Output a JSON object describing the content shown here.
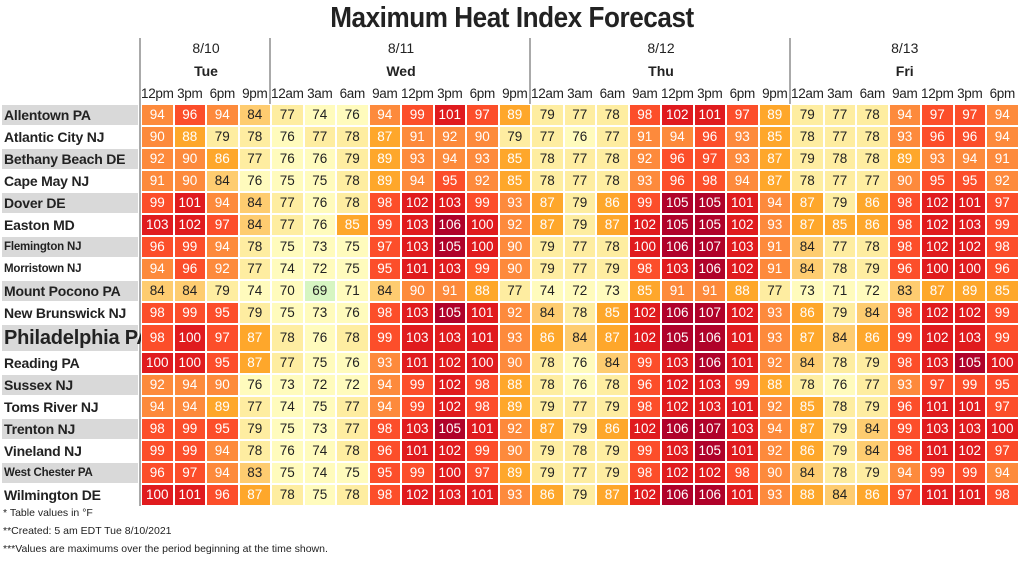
{
  "chart_data": {
    "type": "heatmap",
    "title": "Maximum Heat Index Forecast",
    "days": [
      {
        "date": "8/10",
        "day": "Tue",
        "times": [
          "12pm",
          "3pm",
          "6pm",
          "9pm"
        ]
      },
      {
        "date": "8/11",
        "day": "Wed",
        "times": [
          "12am",
          "3am",
          "6am",
          "9am",
          "12pm",
          "3pm",
          "6pm",
          "9pm"
        ]
      },
      {
        "date": "8/12",
        "day": "Thu",
        "times": [
          "12am",
          "3am",
          "6am",
          "9am",
          "12pm",
          "3pm",
          "6pm",
          "9pm"
        ]
      },
      {
        "date": "8/13",
        "day": "Fri",
        "times": [
          "12am",
          "3am",
          "6am",
          "9am",
          "12pm",
          "3pm",
          "6pm"
        ]
      }
    ],
    "units": "°F",
    "rows": [
      {
        "name": "Allentown PA",
        "values": [
          94,
          96,
          94,
          84,
          77,
          74,
          76,
          94,
          99,
          101,
          97,
          89,
          79,
          77,
          78,
          98,
          102,
          101,
          97,
          89,
          79,
          77,
          78,
          94,
          97,
          97,
          94
        ]
      },
      {
        "name": "Atlantic City NJ",
        "values": [
          90,
          88,
          79,
          78,
          76,
          77,
          78,
          87,
          91,
          92,
          90,
          79,
          77,
          76,
          77,
          91,
          94,
          96,
          93,
          85,
          78,
          77,
          78,
          93,
          96,
          96,
          94
        ]
      },
      {
        "name": "Bethany Beach DE",
        "values": [
          92,
          90,
          86,
          77,
          76,
          76,
          79,
          89,
          93,
          94,
          93,
          85,
          78,
          77,
          78,
          92,
          96,
          97,
          93,
          87,
          79,
          78,
          78,
          89,
          93,
          94,
          91
        ]
      },
      {
        "name": "Cape May NJ",
        "values": [
          91,
          90,
          84,
          76,
          75,
          75,
          78,
          89,
          94,
          95,
          92,
          85,
          78,
          77,
          78,
          93,
          96,
          98,
          94,
          87,
          78,
          77,
          77,
          90,
          95,
          95,
          92
        ]
      },
      {
        "name": "Dover DE",
        "values": [
          99,
          101,
          94,
          84,
          77,
          76,
          78,
          98,
          102,
          103,
          99,
          93,
          87,
          79,
          86,
          99,
          105,
          105,
          101,
          94,
          87,
          79,
          86,
          98,
          102,
          101,
          97
        ]
      },
      {
        "name": "Easton MD",
        "values": [
          103,
          102,
          97,
          84,
          77,
          76,
          85,
          99,
          103,
          106,
          100,
          92,
          87,
          79,
          87,
          102,
          105,
          105,
          102,
          93,
          87,
          85,
          86,
          98,
          102,
          103,
          99
        ]
      },
      {
        "name": "Flemington NJ",
        "values": [
          96,
          99,
          94,
          78,
          75,
          73,
          75,
          97,
          103,
          105,
          100,
          90,
          79,
          77,
          78,
          100,
          106,
          107,
          103,
          91,
          84,
          77,
          78,
          98,
          102,
          102,
          98
        ]
      },
      {
        "name": "Morristown NJ",
        "values": [
          94,
          96,
          92,
          77,
          74,
          72,
          75,
          95,
          101,
          103,
          99,
          90,
          79,
          77,
          79,
          98,
          103,
          106,
          102,
          91,
          84,
          78,
          79,
          96,
          100,
          100,
          96
        ]
      },
      {
        "name": "Mount Pocono PA",
        "values": [
          84,
          84,
          79,
          74,
          70,
          69,
          71,
          84,
          90,
          91,
          88,
          77,
          74,
          72,
          73,
          85,
          91,
          91,
          88,
          77,
          73,
          71,
          72,
          83,
          87,
          89,
          85
        ]
      },
      {
        "name": "New Brunswick NJ",
        "values": [
          98,
          99,
          95,
          79,
          75,
          73,
          76,
          98,
          103,
          105,
          101,
          92,
          84,
          78,
          85,
          102,
          106,
          107,
          102,
          93,
          86,
          79,
          84,
          98,
          102,
          102,
          99
        ]
      },
      {
        "name": "Philadelphia PA",
        "values": [
          98,
          100,
          97,
          87,
          78,
          76,
          78,
          99,
          103,
          103,
          101,
          93,
          86,
          84,
          87,
          102,
          105,
          106,
          101,
          93,
          87,
          84,
          86,
          99,
          102,
          103,
          99
        ]
      },
      {
        "name": "Reading PA",
        "values": [
          100,
          100,
          95,
          87,
          77,
          75,
          76,
          93,
          101,
          102,
          100,
          90,
          78,
          76,
          84,
          99,
          103,
          106,
          101,
          92,
          84,
          78,
          79,
          98,
          103,
          105,
          100
        ]
      },
      {
        "name": "Sussex NJ",
        "values": [
          92,
          94,
          90,
          76,
          73,
          72,
          72,
          94,
          99,
          102,
          98,
          88,
          78,
          76,
          78,
          96,
          102,
          103,
          99,
          88,
          78,
          76,
          77,
          93,
          97,
          99,
          95
        ]
      },
      {
        "name": "Toms River NJ",
        "values": [
          94,
          94,
          89,
          77,
          74,
          75,
          77,
          94,
          99,
          102,
          98,
          89,
          79,
          77,
          79,
          98,
          102,
          103,
          101,
          92,
          85,
          78,
          79,
          96,
          101,
          101,
          97
        ]
      },
      {
        "name": "Trenton NJ",
        "values": [
          98,
          99,
          95,
          79,
          75,
          73,
          77,
          98,
          103,
          105,
          101,
          92,
          87,
          79,
          86,
          102,
          106,
          107,
          103,
          94,
          87,
          79,
          84,
          99,
          103,
          103,
          100
        ]
      },
      {
        "name": "Vineland NJ",
        "values": [
          99,
          99,
          94,
          78,
          76,
          74,
          78,
          96,
          101,
          102,
          99,
          90,
          79,
          78,
          79,
          99,
          103,
          105,
          101,
          92,
          86,
          79,
          84,
          98,
          101,
          102,
          97
        ]
      },
      {
        "name": "West Chester PA",
        "values": [
          96,
          97,
          94,
          83,
          75,
          74,
          75,
          95,
          99,
          100,
          97,
          89,
          79,
          77,
          79,
          98,
          102,
          102,
          98,
          90,
          84,
          78,
          79,
          94,
          99,
          99,
          94
        ]
      },
      {
        "name": "Wilmington DE",
        "values": [
          100,
          101,
          96,
          87,
          78,
          75,
          78,
          98,
          102,
          103,
          101,
          93,
          86,
          79,
          87,
          102,
          106,
          106,
          101,
          93,
          88,
          84,
          86,
          97,
          101,
          101,
          98
        ]
      }
    ]
  },
  "footnotes": [
    "* Table values in °F",
    "**Created: 5 am EDT Tue 8/10/2021",
    "***Values are maximums over the period beginning at the time shown."
  ]
}
